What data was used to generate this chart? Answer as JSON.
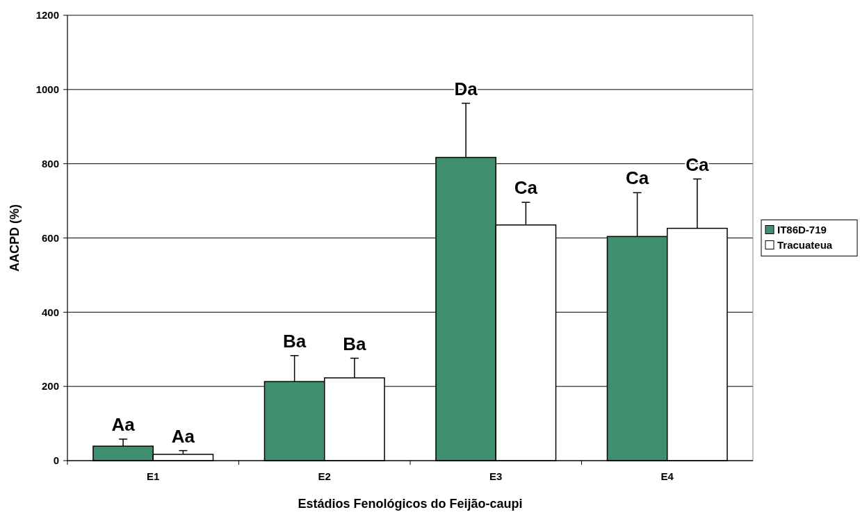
{
  "chart_data": {
    "type": "bar",
    "xlabel": "Estádios Fenológicos do Feijão-caupi",
    "ylabel": "AACPD (%)",
    "categories": [
      "E1",
      "E2",
      "E3",
      "E4"
    ],
    "series": [
      {
        "name": "IT86D-719",
        "color": "#3f8f6e",
        "values": [
          39,
          213,
          817,
          604
        ],
        "errors": [
          [
            39,
            58
          ],
          [
            213,
            283
          ],
          [
            817,
            963
          ],
          [
            604,
            722
          ]
        ]
      },
      {
        "name": "Tracuateua",
        "color": "#ffffff",
        "values": [
          17,
          223,
          635,
          626
        ],
        "errors": [
          [
            17,
            27
          ],
          [
            223,
            276
          ],
          [
            635,
            696
          ],
          [
            626,
            759
          ]
        ]
      }
    ],
    "annotations": [
      "Aa",
      "Aa",
      "Ba",
      "Ba",
      "Da",
      "Ca",
      "Ca",
      "Ca"
    ],
    "ylim": [
      0,
      1200
    ],
    "yticks": [
      0,
      200,
      400,
      600,
      800,
      1000,
      1200
    ],
    "grid": "y",
    "legend": "right"
  }
}
